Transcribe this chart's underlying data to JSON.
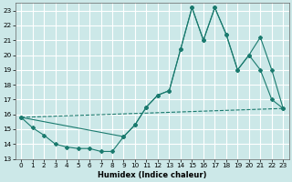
{
  "xlabel": "Humidex (Indice chaleur)",
  "xlim": [
    -0.5,
    23.5
  ],
  "ylim": [
    13,
    23.5
  ],
  "xticks": [
    0,
    1,
    2,
    3,
    4,
    5,
    6,
    7,
    8,
    9,
    10,
    11,
    12,
    13,
    14,
    15,
    16,
    17,
    18,
    19,
    20,
    21,
    22,
    23
  ],
  "yticks": [
    13,
    14,
    15,
    16,
    17,
    18,
    19,
    20,
    21,
    22,
    23
  ],
  "bg_color": "#cce8e8",
  "line_color": "#1a7a6e",
  "grid_color": "#ffffff",
  "line1_x": [
    0,
    1,
    2,
    3,
    4,
    5,
    6,
    7,
    8,
    9,
    10,
    11,
    12,
    13,
    14,
    15,
    16,
    17,
    18,
    19,
    20,
    21,
    22,
    23
  ],
  "line1_y": [
    15.8,
    15.1,
    14.6,
    14.0,
    13.8,
    13.7,
    13.7,
    13.5,
    13.5,
    14.5,
    15.3,
    16.5,
    17.3,
    17.6,
    20.4,
    23.2,
    21.0,
    23.2,
    21.4,
    19.0,
    20.0,
    19.0,
    17.0,
    16.4
  ],
  "line2_x": [
    0,
    23
  ],
  "line2_y": [
    15.8,
    16.4
  ],
  "line3_x": [
    0,
    9,
    10,
    11,
    12,
    13,
    14,
    15,
    16,
    17,
    18,
    19,
    20,
    21,
    22,
    23
  ],
  "line3_y": [
    15.8,
    14.5,
    15.3,
    16.5,
    17.3,
    17.6,
    20.4,
    23.2,
    21.0,
    23.2,
    21.4,
    19.0,
    20.0,
    21.2,
    19.0,
    16.4
  ]
}
